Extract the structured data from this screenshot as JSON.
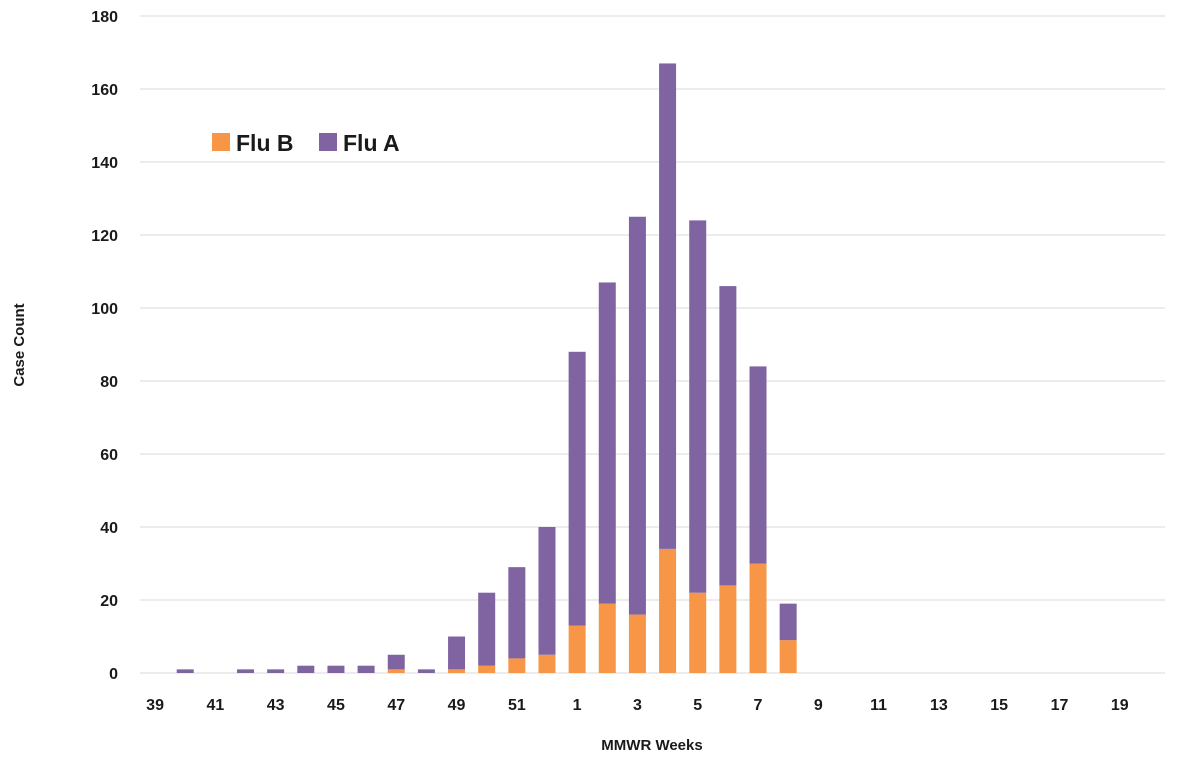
{
  "chart_data": {
    "type": "bar",
    "stacked": true,
    "xlabel": "MMWR Weeks",
    "ylabel": "Case Count",
    "ylim": [
      0,
      180
    ],
    "yticks": [
      0,
      20,
      40,
      60,
      80,
      100,
      120,
      140,
      160,
      180
    ],
    "grid": true,
    "legend_position": "top-left",
    "categories": [
      "39",
      "40",
      "41",
      "42",
      "43",
      "44",
      "45",
      "46",
      "47",
      "48",
      "49",
      "50",
      "51",
      "52",
      "1",
      "2",
      "3",
      "4",
      "5",
      "6",
      "7",
      "8",
      "9",
      "10",
      "11",
      "12",
      "13",
      "14",
      "15",
      "16",
      "17",
      "18",
      "19",
      "20"
    ],
    "x_tick_labels": [
      "39",
      "41",
      "43",
      "45",
      "47",
      "49",
      "51",
      "1",
      "3",
      "5",
      "7",
      "9",
      "11",
      "13",
      "15",
      "17",
      "19"
    ],
    "series": [
      {
        "name": "Flu B",
        "color": "#F79646",
        "values": [
          0,
          0,
          0,
          0,
          0,
          0,
          0,
          0,
          1,
          0,
          1,
          2,
          4,
          5,
          13,
          19,
          16,
          34,
          22,
          24,
          30,
          9,
          0,
          0,
          0,
          0,
          0,
          0,
          0,
          0,
          0,
          0,
          0,
          0
        ]
      },
      {
        "name": "Flu A",
        "color": "#8064A2",
        "values": [
          0,
          1,
          0,
          1,
          1,
          2,
          2,
          2,
          4,
          1,
          9,
          20,
          25,
          35,
          75,
          88,
          109,
          133,
          102,
          82,
          54,
          10,
          0,
          0,
          0,
          0,
          0,
          0,
          0,
          0,
          0,
          0,
          0,
          0
        ]
      }
    ]
  }
}
